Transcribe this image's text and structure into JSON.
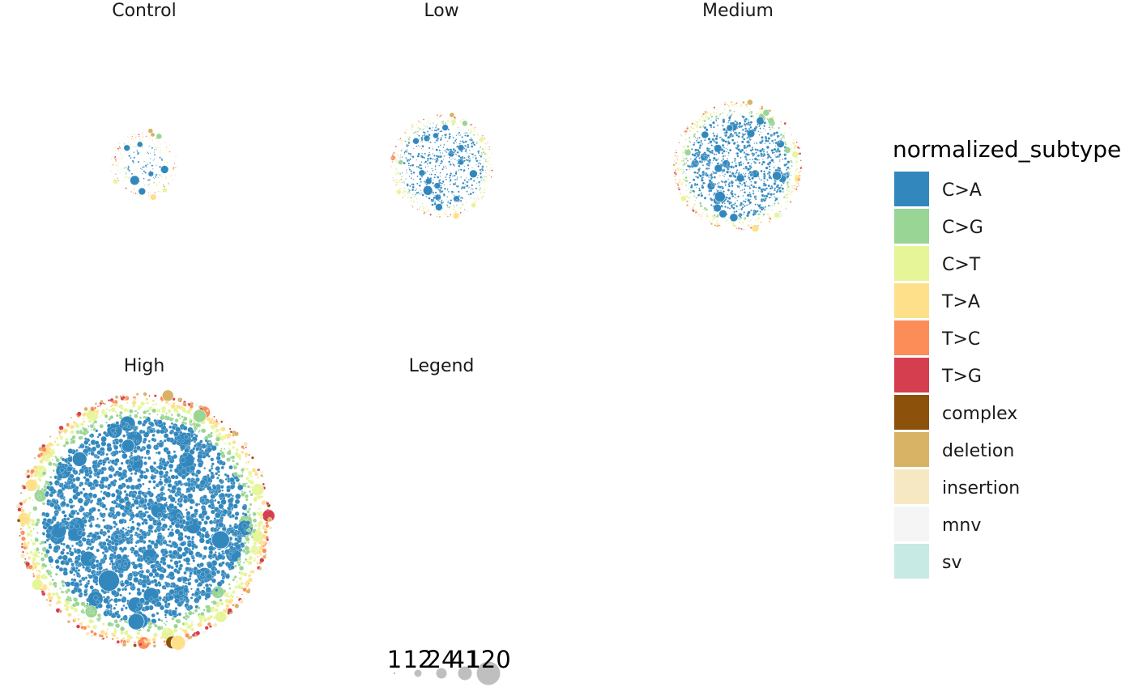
{
  "chart_data": {
    "type": "packed-circles",
    "panels": [
      {
        "title": "Control",
        "total_circles": 260,
        "composition": {
          "C>A": 0.3,
          "C>G": 0.1,
          "C>T": 0.16,
          "T>A": 0.12,
          "T>C": 0.09,
          "T>G": 0.04,
          "complex": 0.0,
          "deletion": 0.05,
          "insertion": 0.12,
          "mnv": 0.02,
          "sv": 0.0
        }
      },
      {
        "title": "Low",
        "total_circles": 900,
        "composition": {
          "C>A": 0.62,
          "C>G": 0.12,
          "C>T": 0.1,
          "T>A": 0.06,
          "T>C": 0.03,
          "T>G": 0.02,
          "complex": 0.0,
          "deletion": 0.02,
          "insertion": 0.01,
          "mnv": 0.02,
          "sv": 0.0
        }
      },
      {
        "title": "Medium",
        "total_circles": 1400,
        "composition": {
          "C>A": 0.63,
          "C>G": 0.12,
          "C>T": 0.1,
          "T>A": 0.06,
          "T>C": 0.03,
          "T>G": 0.02,
          "complex": 0.0,
          "deletion": 0.02,
          "insertion": 0.01,
          "mnv": 0.01,
          "sv": 0.0
        }
      },
      {
        "title": "High",
        "total_circles": 3200,
        "composition": {
          "C>A": 0.64,
          "C>G": 0.12,
          "C>T": 0.1,
          "T>A": 0.06,
          "T>C": 0.03,
          "T>G": 0.02,
          "complex": 0.005,
          "deletion": 0.015,
          "insertion": 0.005,
          "mnv": 0.005,
          "sv": 0.0
        }
      },
      {
        "title": "Legend"
      }
    ],
    "size_legend": {
      "values": [
        1,
        12,
        24,
        41,
        120
      ],
      "labels": [
        "1",
        "12",
        "24",
        "41",
        "120"
      ],
      "color": "#bfbfbf"
    },
    "fill_legend": {
      "title": "normalized_subtype",
      "items": [
        {
          "label": "C>A",
          "color": "#3288bd"
        },
        {
          "label": "C>G",
          "color": "#99d594"
        },
        {
          "label": "C>T",
          "color": "#e6f598"
        },
        {
          "label": "T>A",
          "color": "#fee08b"
        },
        {
          "label": "T>C",
          "color": "#fc8d59"
        },
        {
          "label": "T>G",
          "color": "#d53e4f"
        },
        {
          "label": "complex",
          "color": "#8c510a"
        },
        {
          "label": "deletion",
          "color": "#d8b365"
        },
        {
          "label": "insertion",
          "color": "#f6e8c3"
        },
        {
          "label": "mnv",
          "color": "#f5f5f5"
        },
        {
          "label": "sv",
          "color": "#c7eae5"
        }
      ],
      "placement": "right"
    },
    "grid": false
  }
}
